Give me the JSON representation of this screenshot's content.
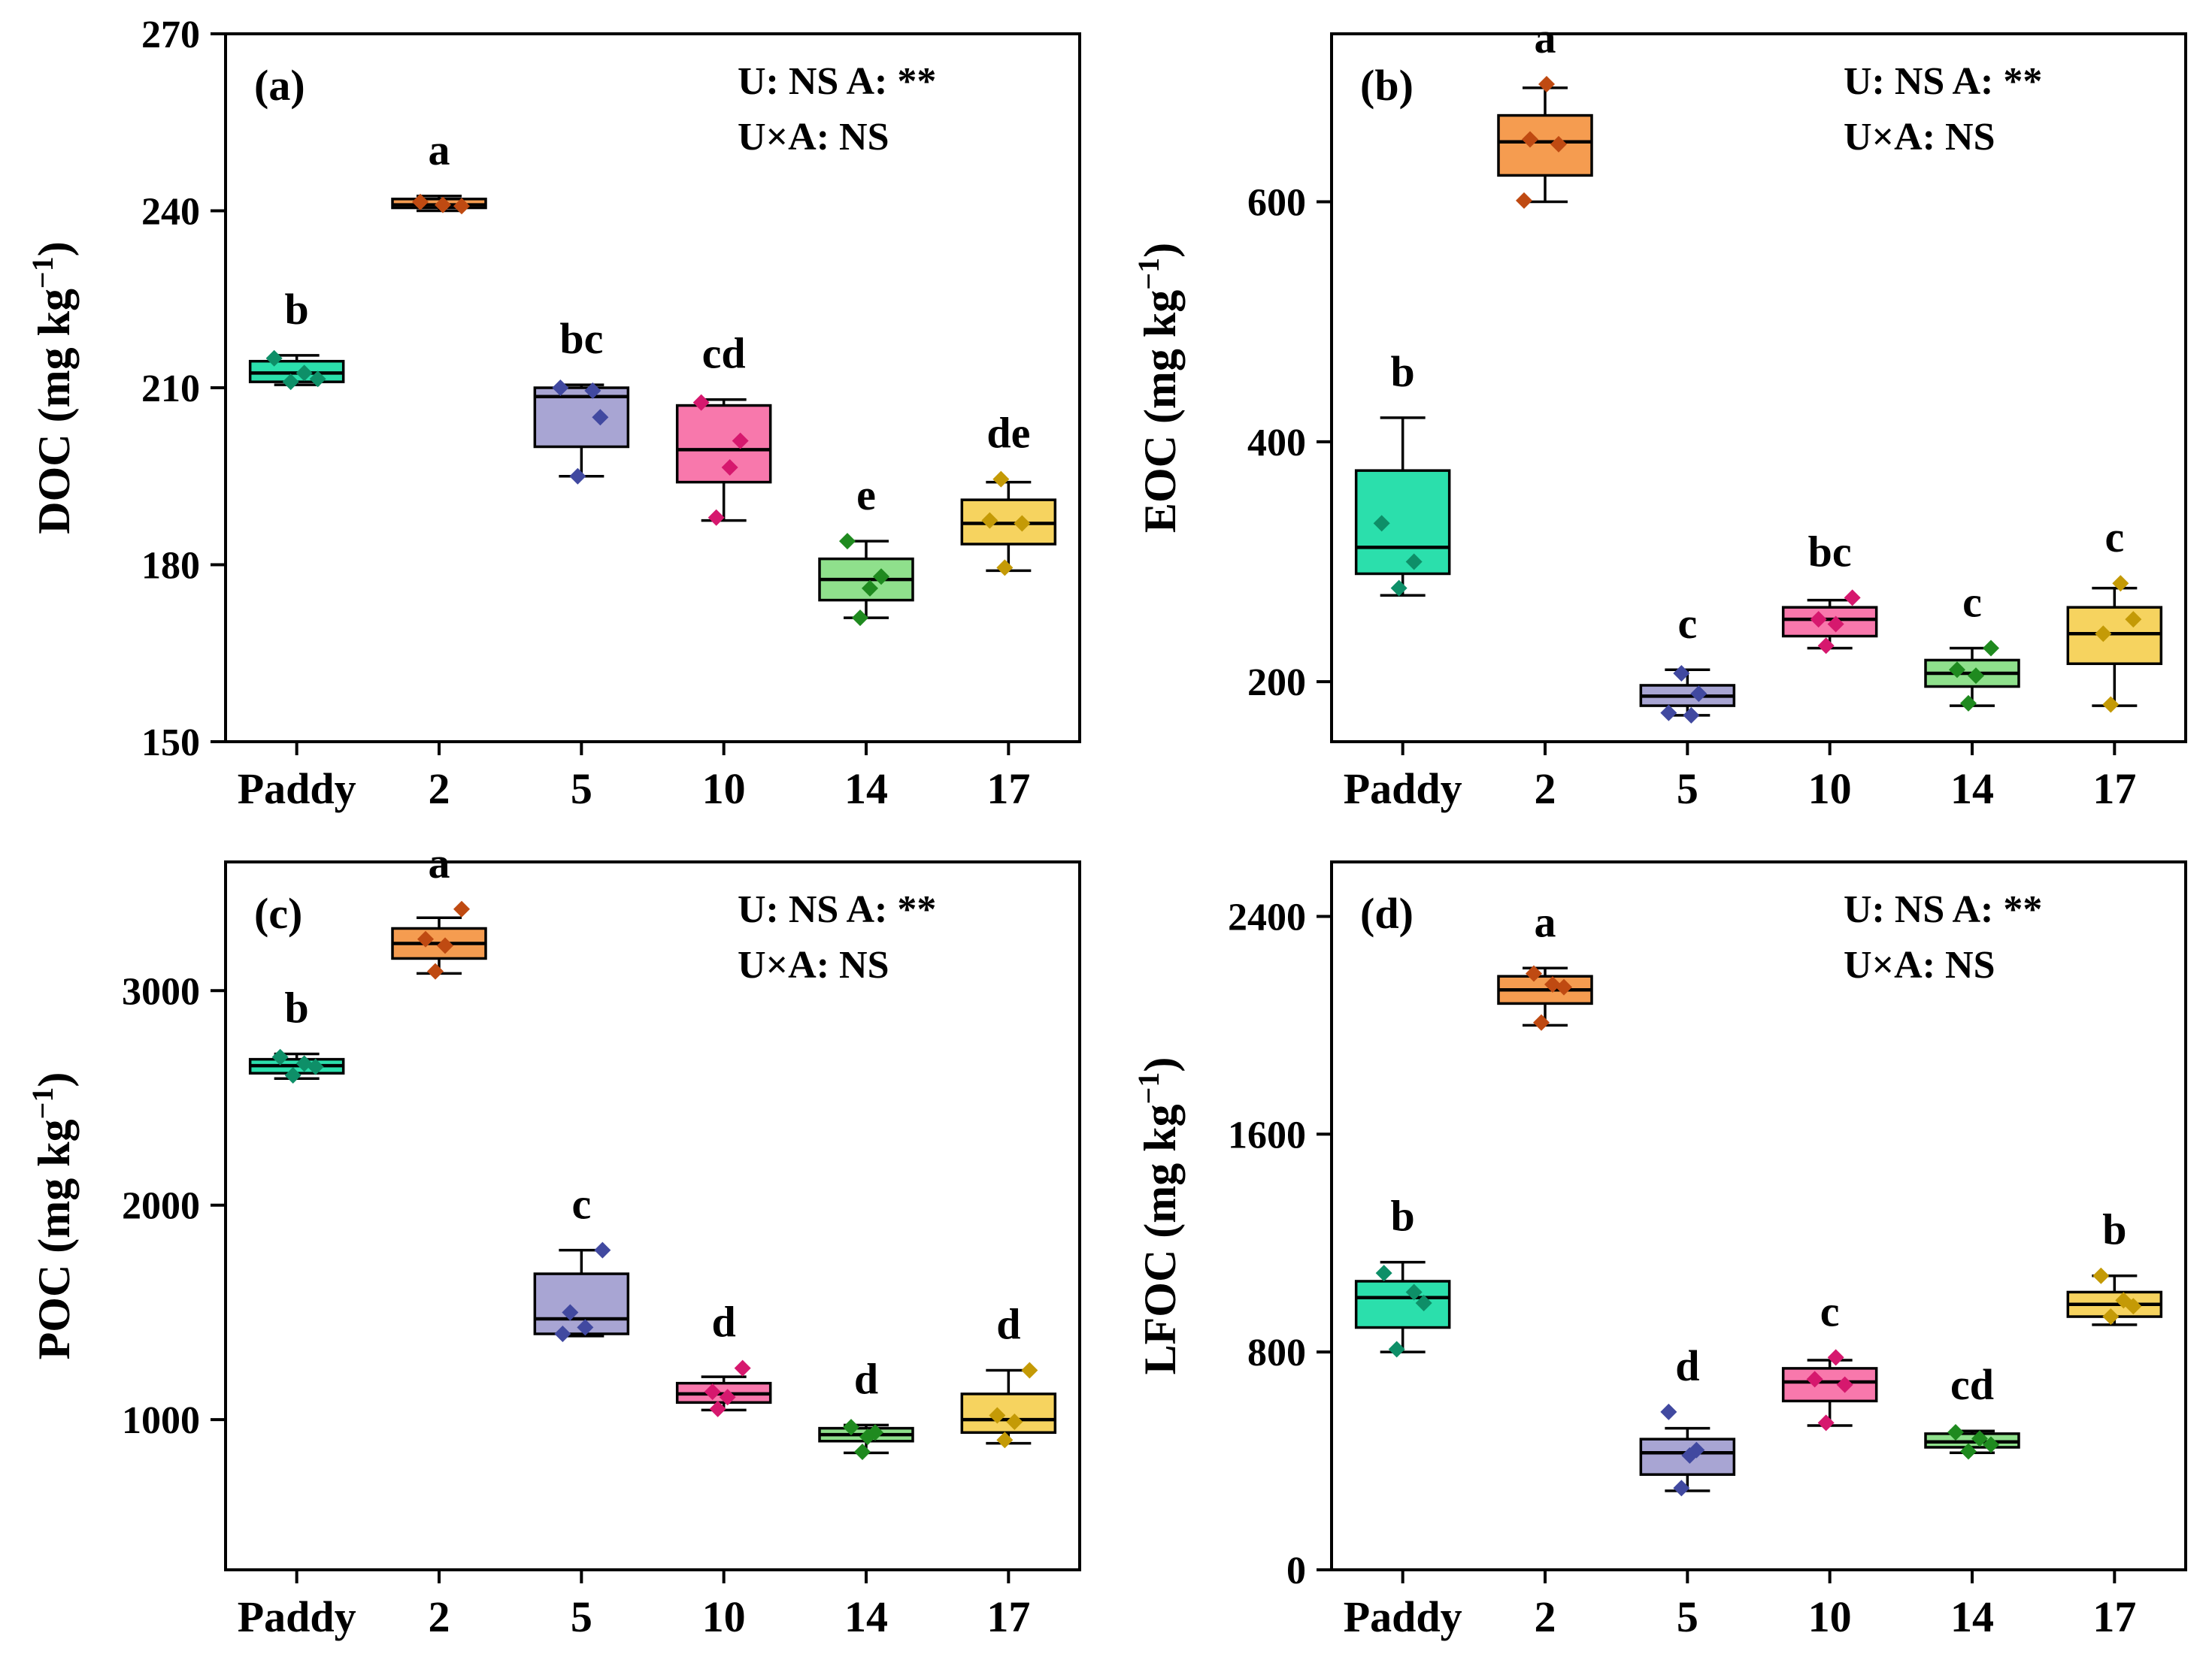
{
  "figure": {
    "background": "#ffffff",
    "categories": [
      "Paddy",
      "2",
      "5",
      "10",
      "14",
      "17"
    ],
    "annotation_lines": [
      "U: NS A: **",
      "U×A: NS"
    ],
    "box_fills": [
      "#2BDFAC",
      "#F59C50",
      "#A8A5D3",
      "#F878AC",
      "#8FE08C",
      "#F6D35F"
    ],
    "point_colors": [
      "#0E8F68",
      "#BF4A12",
      "#4149A0",
      "#D6186E",
      "#1F8A1F",
      "#C49A06"
    ]
  },
  "chart_data": [
    {
      "type": "box",
      "panel_label": "(a)",
      "measure": "DOC",
      "ylabel_prefix": "DOC (mg kg",
      "ylabel_sup": "−1",
      "ylabel_suffix": ")",
      "ylim": [
        150,
        270
      ],
      "yticks": [
        150,
        180,
        210,
        240,
        270
      ],
      "categories": [
        "Paddy",
        "2",
        "5",
        "10",
        "14",
        "17"
      ],
      "sig_letters": [
        "b",
        "a",
        "bc",
        "cd",
        "e",
        "de"
      ],
      "boxes": [
        {
          "whislo": 210.5,
          "q1": 211,
          "med": 212.5,
          "q3": 214.5,
          "whishi": 215.5,
          "points": [
            [
              -30,
              215
            ],
            [
              10,
              212.5
            ],
            [
              28,
              211.5
            ],
            [
              -8,
              211
            ]
          ]
        },
        {
          "whislo": 240,
          "q1": 240.5,
          "med": 241,
          "q3": 242,
          "whishi": 242.5,
          "points": [
            [
              -25,
              241.5
            ],
            [
              5,
              241
            ],
            [
              30,
              240.8
            ]
          ]
        },
        {
          "whislo": 195,
          "q1": 200,
          "med": 208.5,
          "q3": 210,
          "whishi": 210.5,
          "points": [
            [
              -28,
              210
            ],
            [
              15,
              209.5
            ],
            [
              25,
              205
            ],
            [
              -5,
              195
            ]
          ]
        },
        {
          "whislo": 187.5,
          "q1": 194,
          "med": 199.5,
          "q3": 207,
          "whishi": 208,
          "points": [
            [
              -30,
              207.5
            ],
            [
              22,
              201
            ],
            [
              8,
              196.5
            ],
            [
              -10,
              188
            ]
          ]
        },
        {
          "whislo": 171,
          "q1": 174,
          "med": 177.5,
          "q3": 181,
          "whishi": 184,
          "points": [
            [
              -25,
              184
            ],
            [
              20,
              178
            ],
            [
              5,
              176
            ],
            [
              -8,
              171
            ]
          ]
        },
        {
          "whislo": 179,
          "q1": 183.5,
          "med": 187,
          "q3": 191,
          "whishi": 194,
          "points": [
            [
              -10,
              194.5
            ],
            [
              -25,
              187.5
            ],
            [
              18,
              187
            ],
            [
              -5,
              179.5
            ]
          ]
        }
      ]
    },
    {
      "type": "box",
      "panel_label": "(b)",
      "measure": "EOC",
      "ylabel_prefix": "EOC (mg kg",
      "ylabel_sup": "−1",
      "ylabel_suffix": ")",
      "ylim": [
        150,
        740
      ],
      "yticks": [
        200,
        400,
        600
      ],
      "categories": [
        "Paddy",
        "2",
        "5",
        "10",
        "14",
        "17"
      ],
      "sig_letters": [
        "b",
        "a",
        "c",
        "bc",
        "c",
        "c"
      ],
      "boxes": [
        {
          "whislo": 272,
          "q1": 290,
          "med": 312,
          "q3": 376,
          "whishi": 420,
          "points": [
            [
              -28,
              332
            ],
            [
              15,
              300
            ],
            [
              -5,
              278
            ]
          ]
        },
        {
          "whislo": 600,
          "q1": 622,
          "med": 650,
          "q3": 672,
          "whishi": 695,
          "points": [
            [
              2,
              698
            ],
            [
              -20,
              652
            ],
            [
              18,
              648
            ],
            [
              -28,
              601
            ]
          ]
        },
        {
          "whislo": 172,
          "q1": 180,
          "med": 188,
          "q3": 197,
          "whishi": 210,
          "points": [
            [
              -8,
              207
            ],
            [
              15,
              190
            ],
            [
              -25,
              174
            ],
            [
              5,
              172
            ]
          ]
        },
        {
          "whislo": 228,
          "q1": 238,
          "med": 252,
          "q3": 262,
          "whishi": 268,
          "points": [
            [
              30,
              270
            ],
            [
              -15,
              252
            ],
            [
              8,
              248
            ],
            [
              -5,
              230
            ]
          ]
        },
        {
          "whislo": 180,
          "q1": 196,
          "med": 207,
          "q3": 218,
          "whishi": 228,
          "points": [
            [
              25,
              228
            ],
            [
              -20,
              210
            ],
            [
              5,
              205
            ],
            [
              -5,
              182
            ]
          ]
        },
        {
          "whislo": 180,
          "q1": 215,
          "med": 240,
          "q3": 262,
          "whishi": 278,
          "points": [
            [
              8,
              282
            ],
            [
              25,
              252
            ],
            [
              -15,
              240
            ],
            [
              -5,
              181
            ]
          ]
        }
      ]
    },
    {
      "type": "box",
      "panel_label": "(c)",
      "measure": "POC",
      "ylabel_prefix": "POC (mg kg",
      "ylabel_sup": "−1",
      "ylabel_suffix": ")",
      "ylim": [
        300,
        3600
      ],
      "yticks": [
        1000,
        2000,
        3000
      ],
      "categories": [
        "Paddy",
        "2",
        "5",
        "10",
        "14",
        "17"
      ],
      "sig_letters": [
        "b",
        "a",
        "c",
        "d",
        "d",
        "d"
      ],
      "boxes": [
        {
          "whislo": 2590,
          "q1": 2615,
          "med": 2650,
          "q3": 2680,
          "whishi": 2705,
          "points": [
            [
              -22,
              2690
            ],
            [
              10,
              2660
            ],
            [
              25,
              2645
            ],
            [
              -5,
              2605
            ]
          ]
        },
        {
          "whislo": 3080,
          "q1": 3150,
          "med": 3220,
          "q3": 3290,
          "whishi": 3340,
          "points": [
            [
              30,
              3380
            ],
            [
              -18,
              3240
            ],
            [
              8,
              3210
            ],
            [
              -5,
              3090
            ]
          ]
        },
        {
          "whislo": 1390,
          "q1": 1400,
          "med": 1470,
          "q3": 1680,
          "whishi": 1790,
          "points": [
            [
              28,
              1790
            ],
            [
              -15,
              1500
            ],
            [
              5,
              1430
            ],
            [
              -25,
              1400
            ]
          ]
        },
        {
          "whislo": 1045,
          "q1": 1080,
          "med": 1120,
          "q3": 1170,
          "whishi": 1200,
          "points": [
            [
              25,
              1240
            ],
            [
              -15,
              1130
            ],
            [
              5,
              1105
            ],
            [
              -8,
              1050
            ]
          ]
        },
        {
          "whislo": 845,
          "q1": 900,
          "med": 930,
          "q3": 960,
          "whishi": 975,
          "points": [
            [
              -20,
              965
            ],
            [
              12,
              940
            ],
            [
              2,
              920
            ],
            [
              -5,
              850
            ]
          ]
        },
        {
          "whislo": 890,
          "q1": 940,
          "med": 1000,
          "q3": 1120,
          "whishi": 1230,
          "points": [
            [
              28,
              1230
            ],
            [
              -15,
              1020
            ],
            [
              8,
              990
            ],
            [
              -5,
              905
            ]
          ]
        }
      ]
    },
    {
      "type": "box",
      "panel_label": "(d)",
      "measure": "LFOC",
      "ylabel_prefix": "LFOC (mg kg",
      "ylabel_sup": "−1",
      "ylabel_suffix": ")",
      "ylim": [
        0,
        2600
      ],
      "yticks": [
        0,
        800,
        1600,
        2400
      ],
      "categories": [
        "Paddy",
        "2",
        "5",
        "10",
        "14",
        "17"
      ],
      "sig_letters": [
        "b",
        "a",
        "d",
        "c",
        "cd",
        "b"
      ],
      "boxes": [
        {
          "whislo": 800,
          "q1": 890,
          "med": 1000,
          "q3": 1060,
          "whishi": 1130,
          "points": [
            [
              -25,
              1090
            ],
            [
              15,
              1020
            ],
            [
              28,
              980
            ],
            [
              -8,
              810
            ]
          ]
        },
        {
          "whislo": 2000,
          "q1": 2080,
          "med": 2130,
          "q3": 2180,
          "whishi": 2210,
          "points": [
            [
              -15,
              2190
            ],
            [
              10,
              2150
            ],
            [
              25,
              2140
            ],
            [
              -5,
              2010
            ]
          ]
        },
        {
          "whislo": 290,
          "q1": 350,
          "med": 430,
          "q3": 480,
          "whishi": 520,
          "points": [
            [
              -25,
              580
            ],
            [
              12,
              440
            ],
            [
              3,
              420
            ],
            [
              -8,
              300
            ]
          ]
        },
        {
          "whislo": 530,
          "q1": 620,
          "med": 690,
          "q3": 740,
          "whishi": 770,
          "points": [
            [
              8,
              780
            ],
            [
              -20,
              700
            ],
            [
              20,
              680
            ],
            [
              -5,
              540
            ]
          ]
        },
        {
          "whislo": 430,
          "q1": 450,
          "med": 470,
          "q3": 500,
          "whishi": 510,
          "points": [
            [
              -22,
              505
            ],
            [
              10,
              482
            ],
            [
              25,
              460
            ],
            [
              -5,
              435
            ]
          ]
        },
        {
          "whislo": 900,
          "q1": 930,
          "med": 975,
          "q3": 1020,
          "whishi": 1080,
          "points": [
            [
              -18,
              1080
            ],
            [
              12,
              990
            ],
            [
              25,
              968
            ],
            [
              -5,
              930
            ]
          ]
        }
      ]
    }
  ]
}
